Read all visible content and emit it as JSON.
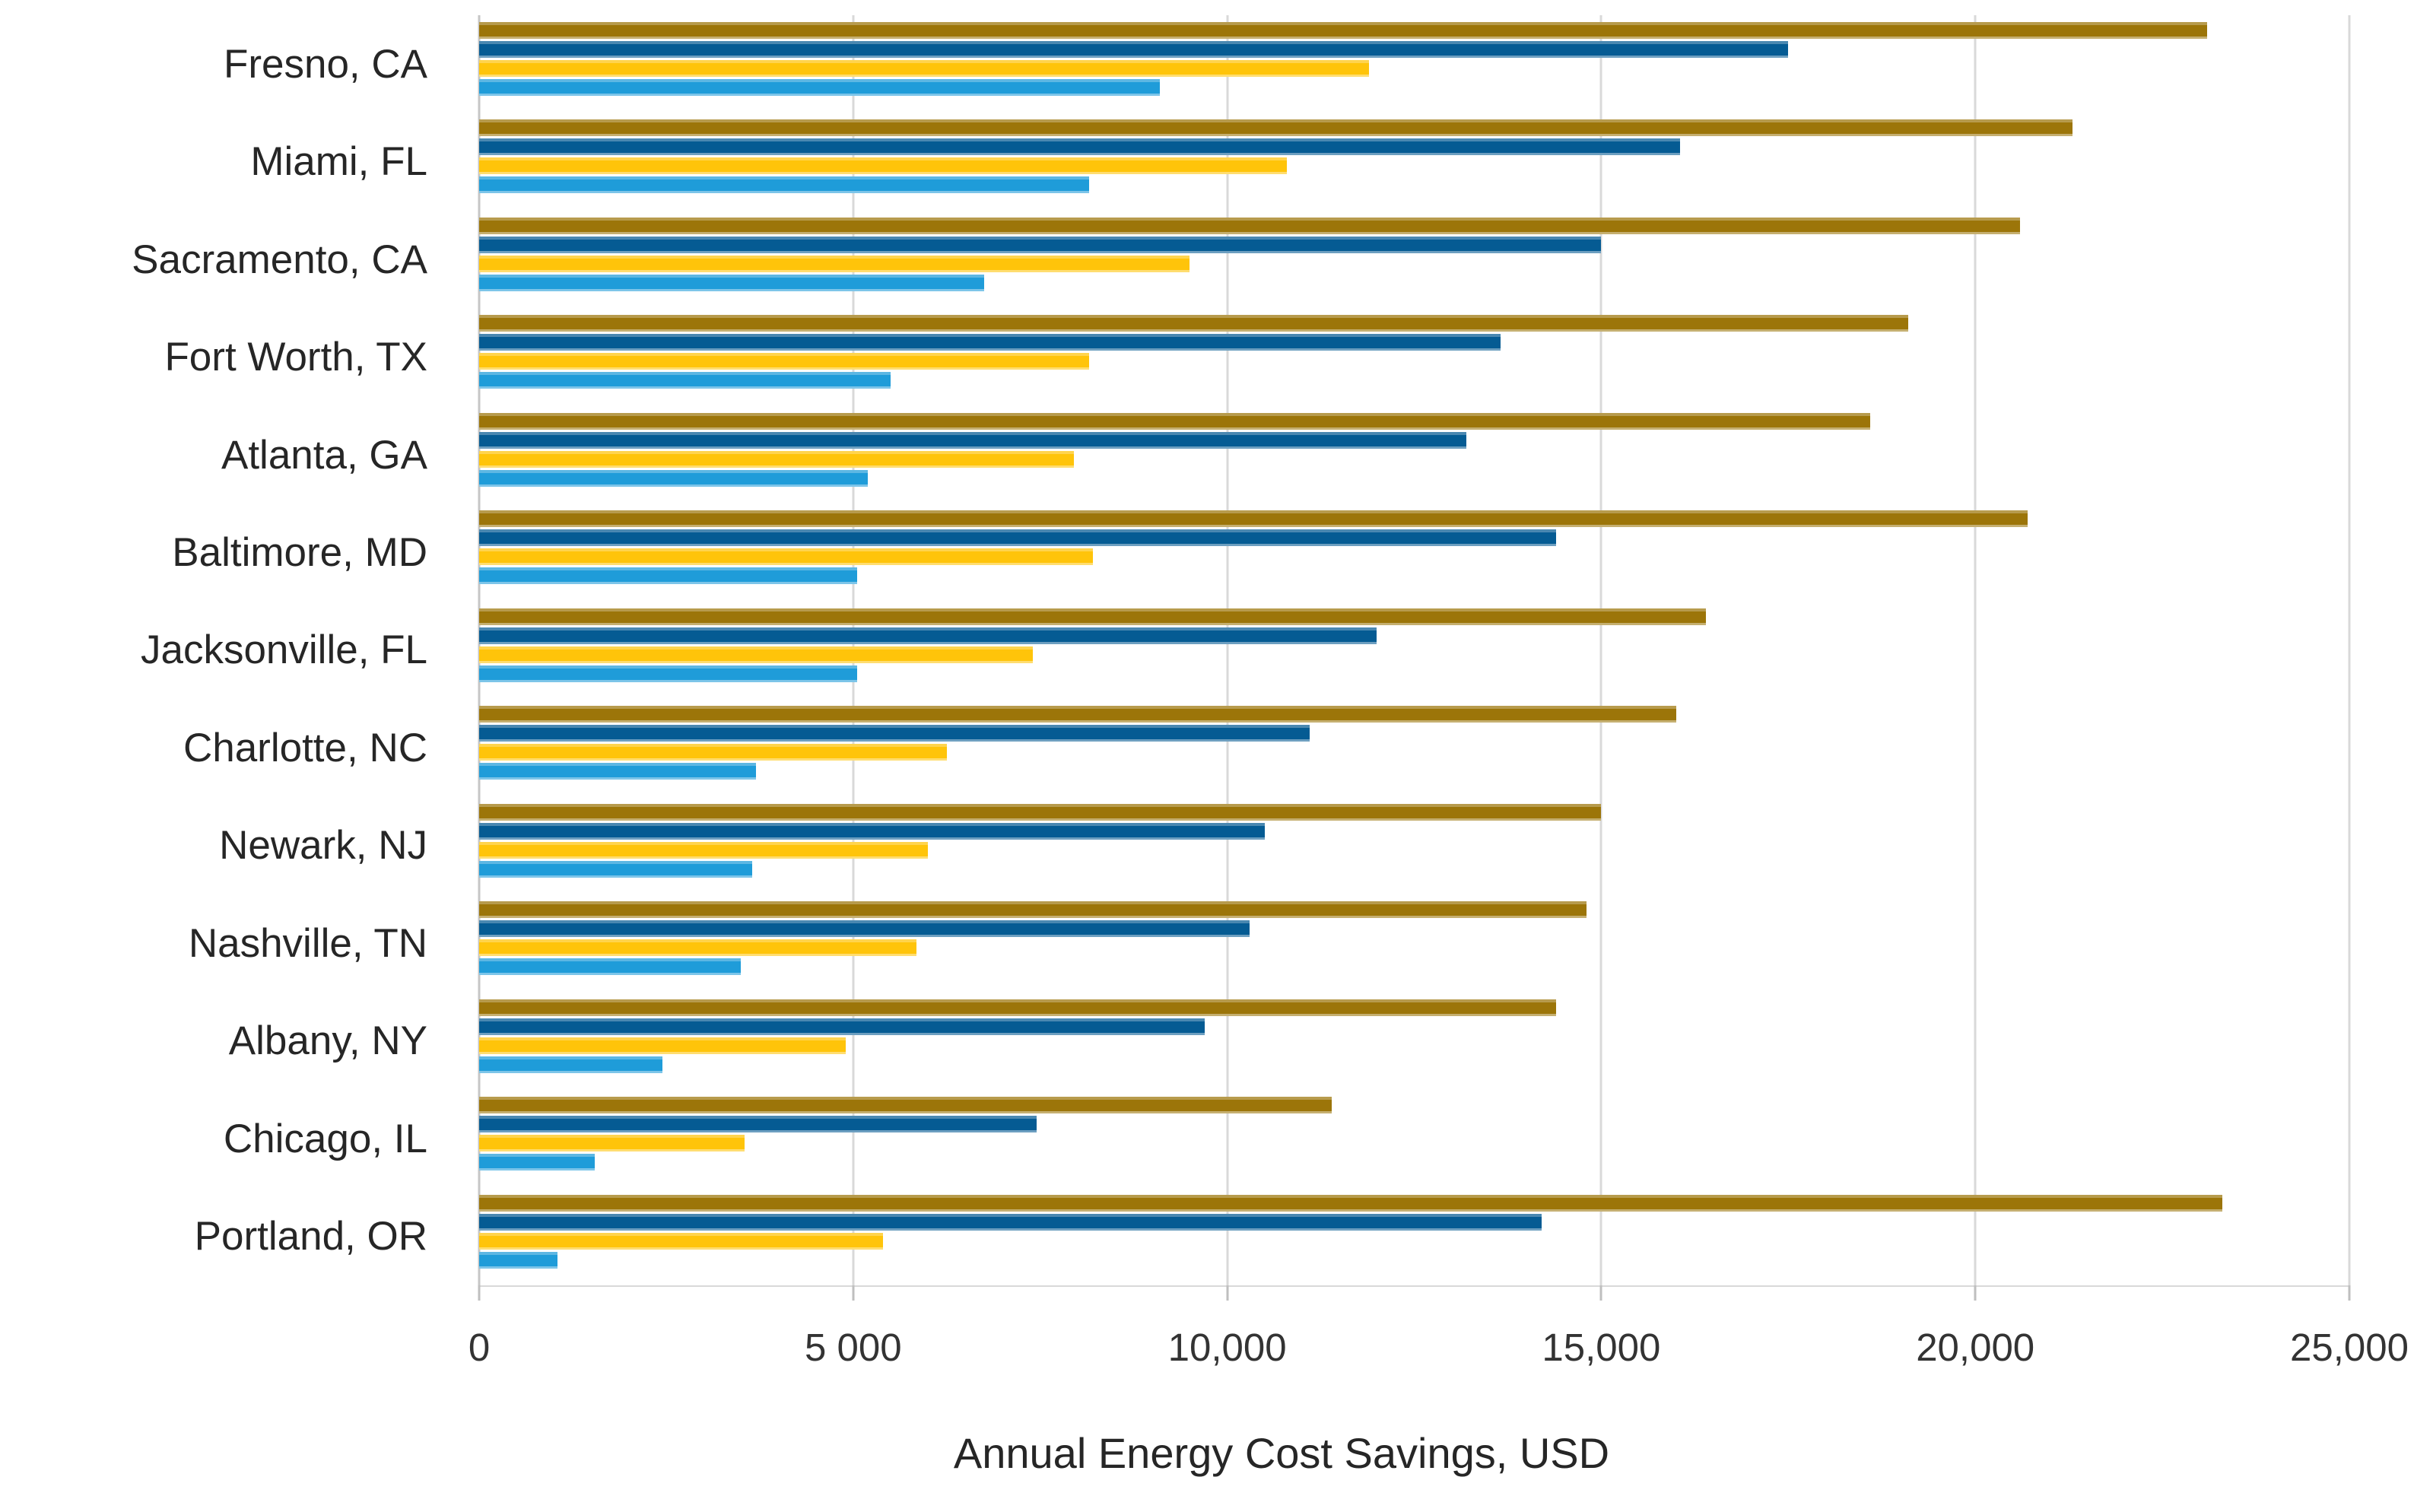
{
  "chart_data": {
    "type": "bar",
    "orientation": "horizontal",
    "title": "",
    "xlabel": "Annual Energy Cost Savings, USD",
    "ylabel": "",
    "xlim": [
      0,
      25000
    ],
    "grid": true,
    "legend": "none",
    "x_ticks": [
      {
        "value": 0,
        "label": "0"
      },
      {
        "value": 5000,
        "label": "5 000"
      },
      {
        "value": 10000,
        "label": "10,000"
      },
      {
        "value": 15000,
        "label": "15,000"
      },
      {
        "value": 20000,
        "label": "20,000"
      },
      {
        "value": 25000,
        "label": "25,000"
      }
    ],
    "categories": [
      "Fresno, CA",
      "Miami, FL",
      "Sacramento, CA",
      "Fort Worth, TX",
      "Atlanta, GA",
      "Baltimore, MD",
      "Jacksonville, FL",
      "Charlotte, NC",
      "Newark, NJ",
      "Nashville, TN",
      "Albany, NY",
      "Chicago, IL",
      "Portland, OR"
    ],
    "series": [
      {
        "name": "dark-gold-bar",
        "color": "#9C7509",
        "values": [
          23100,
          21300,
          20600,
          19100,
          18600,
          20700,
          16400,
          16000,
          15000,
          14800,
          14400,
          11400,
          23300
        ]
      },
      {
        "name": "dark-blue-bar",
        "color": "#055B93",
        "values": [
          17500,
          16050,
          15000,
          13650,
          13200,
          14400,
          12000,
          11100,
          10500,
          10300,
          9700,
          7450,
          14200
        ]
      },
      {
        "name": "yellow-bar",
        "color": "#FFC40A",
        "values": [
          11900,
          10800,
          9500,
          8150,
          7950,
          8200,
          7400,
          6250,
          6000,
          5850,
          4900,
          3550,
          5400
        ]
      },
      {
        "name": "light-blue-bar",
        "color": "#1F9CD9",
        "values": [
          9100,
          8150,
          6750,
          5500,
          5200,
          5050,
          5050,
          3700,
          3650,
          3500,
          2450,
          1550,
          1050
        ]
      }
    ],
    "colors": {
      "gridline": "#D9D9D9",
      "axis_line": "#C6C6C6",
      "text": "#262626"
    }
  }
}
